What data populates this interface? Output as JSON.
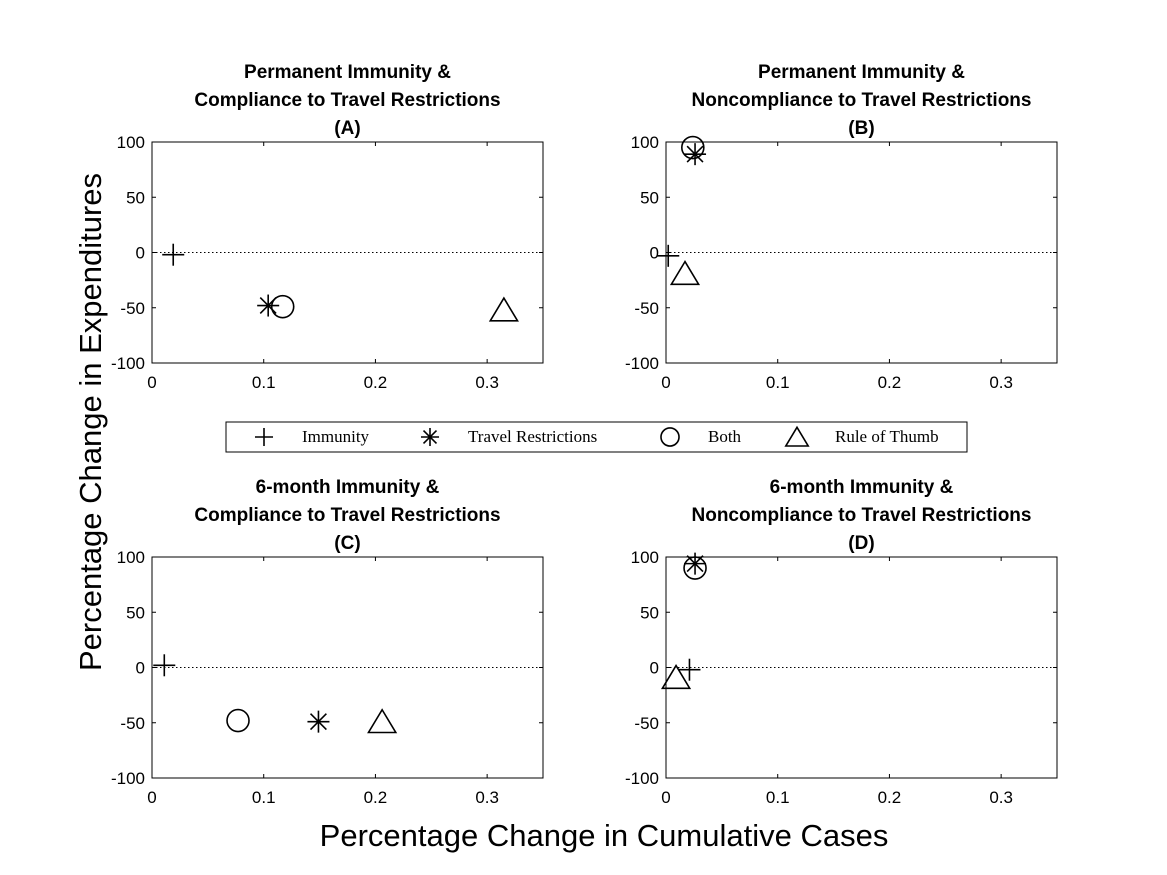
{
  "chart_data": {
    "type": "scatter",
    "xlabel": "Percentage Change in Cumulative Cases",
    "ylabel": "Percentage Change in Expenditures",
    "legend": {
      "placement": "center",
      "entries": [
        {
          "name": "Immunity",
          "marker": "plus"
        },
        {
          "name": "Travel Restrictions",
          "marker": "asterisk"
        },
        {
          "name": "Both",
          "marker": "circle"
        },
        {
          "name": "Rule of Thumb",
          "marker": "triangle"
        }
      ]
    },
    "panels": [
      {
        "title_lines": [
          "Permanent Immunity &",
          "Compliance to Travel Restrictions",
          "(A)"
        ],
        "xlim": [
          0,
          0.35
        ],
        "ylim": [
          -100,
          100
        ],
        "xticks": [
          0,
          0.1,
          0.2,
          0.3
        ],
        "xtick_labels": [
          "0",
          "0.1",
          "0.2",
          "0.3"
        ],
        "yticks": [
          100,
          50,
          0,
          -50,
          -100
        ],
        "ytick_labels": [
          "100",
          "50",
          "0",
          "-50",
          "-100"
        ],
        "zero_line": true,
        "points": [
          {
            "series": "Immunity",
            "x": 0.019,
            "y": -2
          },
          {
            "series": "Travel Restrictions",
            "x": 0.104,
            "y": -48
          },
          {
            "series": "Both",
            "x": 0.117,
            "y": -49
          },
          {
            "series": "Rule of Thumb",
            "x": 0.315,
            "y": -53
          }
        ]
      },
      {
        "title_lines": [
          "Permanent Immunity &",
          "Noncompliance to Travel Restrictions",
          "(B)"
        ],
        "xlim": [
          0,
          0.35
        ],
        "ylim": [
          -100,
          100
        ],
        "xticks": [
          0,
          0.1,
          0.2,
          0.3
        ],
        "xtick_labels": [
          "0",
          "0.1",
          "0.2",
          "0.3"
        ],
        "yticks": [
          100,
          50,
          0,
          -50,
          -100
        ],
        "ytick_labels": [
          "100",
          "50",
          "0",
          "-50",
          "-100"
        ],
        "zero_line": true,
        "points": [
          {
            "series": "Immunity",
            "x": 0.002,
            "y": -3
          },
          {
            "series": "Travel Restrictions",
            "x": 0.026,
            "y": 89
          },
          {
            "series": "Both",
            "x": 0.024,
            "y": 95
          },
          {
            "series": "Rule of Thumb",
            "x": 0.017,
            "y": -20
          }
        ]
      },
      {
        "title_lines": [
          "6-month Immunity &",
          "Compliance to Travel Restrictions",
          "(C)"
        ],
        "xlim": [
          0,
          0.35
        ],
        "ylim": [
          -100,
          100
        ],
        "xticks": [
          0,
          0.1,
          0.2,
          0.3
        ],
        "xtick_labels": [
          "0",
          "0.1",
          "0.2",
          "0.3"
        ],
        "yticks": [
          100,
          50,
          0,
          -50,
          -100
        ],
        "ytick_labels": [
          "100",
          "50",
          "0",
          "-50",
          "-100"
        ],
        "zero_line": true,
        "points": [
          {
            "series": "Immunity",
            "x": 0.011,
            "y": 2
          },
          {
            "series": "Travel Restrictions",
            "x": 0.149,
            "y": -49
          },
          {
            "series": "Both",
            "x": 0.077,
            "y": -48
          },
          {
            "series": "Rule of Thumb",
            "x": 0.206,
            "y": -50
          }
        ]
      },
      {
        "title_lines": [
          "6-month Immunity &",
          "Noncompliance to Travel Restrictions",
          "(D)"
        ],
        "xlim": [
          0,
          0.35
        ],
        "ylim": [
          -100,
          100
        ],
        "xticks": [
          0,
          0.1,
          0.2,
          0.3
        ],
        "xtick_labels": [
          "0",
          "0.1",
          "0.2",
          "0.3"
        ],
        "yticks": [
          100,
          50,
          0,
          -50,
          -100
        ],
        "ytick_labels": [
          "100",
          "50",
          "0",
          "-50",
          "-100"
        ],
        "zero_line": true,
        "points": [
          {
            "series": "Immunity",
            "x": 0.021,
            "y": -2
          },
          {
            "series": "Travel Restrictions",
            "x": 0.026,
            "y": 94
          },
          {
            "series": "Both",
            "x": 0.026,
            "y": 90
          },
          {
            "series": "Rule of Thumb",
            "x": 0.009,
            "y": -10
          }
        ]
      }
    ]
  }
}
